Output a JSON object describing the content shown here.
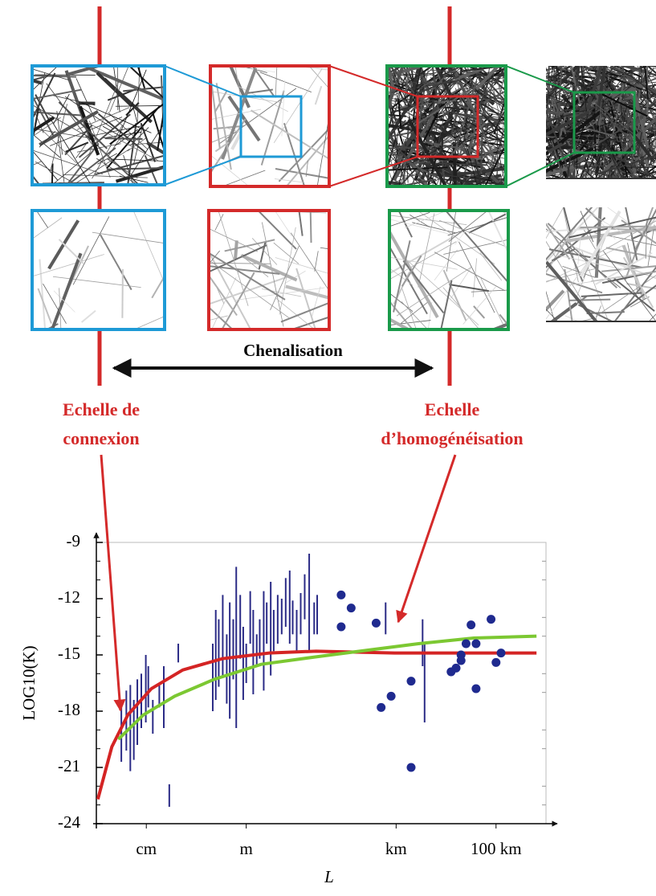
{
  "chart_data": {
    "type": "scatter",
    "annotations": {
      "range_label": "Chenalisation",
      "connection_scale": [
        "Echelle de",
        "connexion"
      ],
      "homogenization_scale": [
        "Echelle",
        "d’homogénéisation"
      ]
    },
    "xlabel": "L",
    "ylabel": "LOG10(K)",
    "xlim": [
      -3,
      6
    ],
    "xticks": [
      {
        "value": -2,
        "label": "cm"
      },
      {
        "value": 0,
        "label": "m"
      },
      {
        "value": 3,
        "label": "km"
      },
      {
        "value": 5,
        "label": "100 km"
      }
    ],
    "ylim": [
      -24,
      -9
    ],
    "yticks": [
      -9,
      -12,
      -15,
      -18,
      -21,
      -24
    ],
    "ranges": {
      "color": "#2b2b86",
      "x": [
        -2.5,
        -2.4,
        -2.32,
        -2.25,
        -2.18,
        -2.1,
        -2.01,
        -1.96,
        -1.87,
        -1.74,
        -1.65,
        -1.54,
        -1.36,
        -0.67,
        -0.61,
        -0.55,
        -0.47,
        -0.39,
        -0.33,
        -0.26,
        -0.2,
        -0.12,
        -0.06,
        0,
        0.08,
        0.14,
        0.21,
        0.27,
        0.35,
        0.41,
        0.49,
        0.55,
        0.63,
        0.71,
        0.79,
        0.87,
        0.93,
        1.01,
        1.09,
        1.17,
        1.26,
        1.36,
        1.42,
        2.79,
        3.53,
        3.57
      ],
      "low": [
        -20.7,
        -20.1,
        -21.2,
        -20.6,
        -19.8,
        -18.9,
        -18.6,
        -17.8,
        -19.2,
        -17.8,
        -18.9,
        -23.1,
        -15.4,
        -18.0,
        -17.4,
        -16.7,
        -16.1,
        -17.6,
        -18.4,
        -16.3,
        -18.9,
        -15.2,
        -17.4,
        -16.5,
        -14.4,
        -17.1,
        -15.6,
        -15.2,
        -16.9,
        -14.4,
        -16.1,
        -14.8,
        -14.4,
        -13.9,
        -13.5,
        -14.4,
        -13.9,
        -14.8,
        -13.9,
        -13.1,
        -14.8,
        -13.9,
        -13.9,
        -13.9,
        -15.6,
        -18.6
      ],
      "high": [
        -17.6,
        -16.9,
        -16.6,
        -17.4,
        -16.3,
        -16.0,
        -15.0,
        -15.6,
        -17.4,
        -16.5,
        -15.6,
        -21.9,
        -14.4,
        -14.4,
        -12.6,
        -13.1,
        -11.8,
        -13.9,
        -12.2,
        -13.1,
        -10.3,
        -11.8,
        -13.5,
        -14.4,
        -11.6,
        -12.6,
        -13.9,
        -13.1,
        -11.6,
        -12.2,
        -11.1,
        -12.6,
        -11.8,
        -12.0,
        -10.9,
        -10.5,
        -12.1,
        -12.6,
        -11.7,
        -10.7,
        -9.6,
        -12.2,
        -11.8,
        -12.2,
        -13.1,
        -14.4
      ]
    },
    "points": {
      "color": "#1f2a8f",
      "x": [
        1.9,
        2.1,
        1.9,
        2.6,
        2.7,
        2.9,
        3.3,
        3.3,
        4.5,
        4.9,
        4.6,
        4.4,
        4.3,
        4.3,
        4.2,
        4.1,
        5.1,
        5.0,
        4.6
      ],
      "y": [
        -11.8,
        -12.5,
        -13.5,
        -13.3,
        -17.8,
        -17.2,
        -16.4,
        -21.0,
        -13.4,
        -13.1,
        -14.4,
        -14.4,
        -15.0,
        -15.3,
        -15.7,
        -15.9,
        -14.9,
        -15.4,
        -16.8
      ]
    },
    "curves": [
      {
        "color": "#d42424",
        "x": [
          -2.97,
          -2.69,
          -2.37,
          -1.9,
          -1.27,
          -0.48,
          0.46,
          1.4,
          2.97,
          5.81
        ],
        "y": [
          -22.7,
          -19.9,
          -18.2,
          -16.8,
          -15.8,
          -15.2,
          -14.9,
          -14.8,
          -14.9,
          -14.9
        ]
      },
      {
        "color": "#7cc832",
        "x": [
          -2.56,
          -2.06,
          -1.43,
          -0.64,
          0.3,
          1.4,
          2.27,
          3.45,
          4.55,
          5.81
        ],
        "y": [
          -19.5,
          -18.2,
          -17.2,
          -16.3,
          -15.5,
          -15.1,
          -14.8,
          -14.4,
          -14.1,
          -14.0
        ]
      }
    ]
  }
}
